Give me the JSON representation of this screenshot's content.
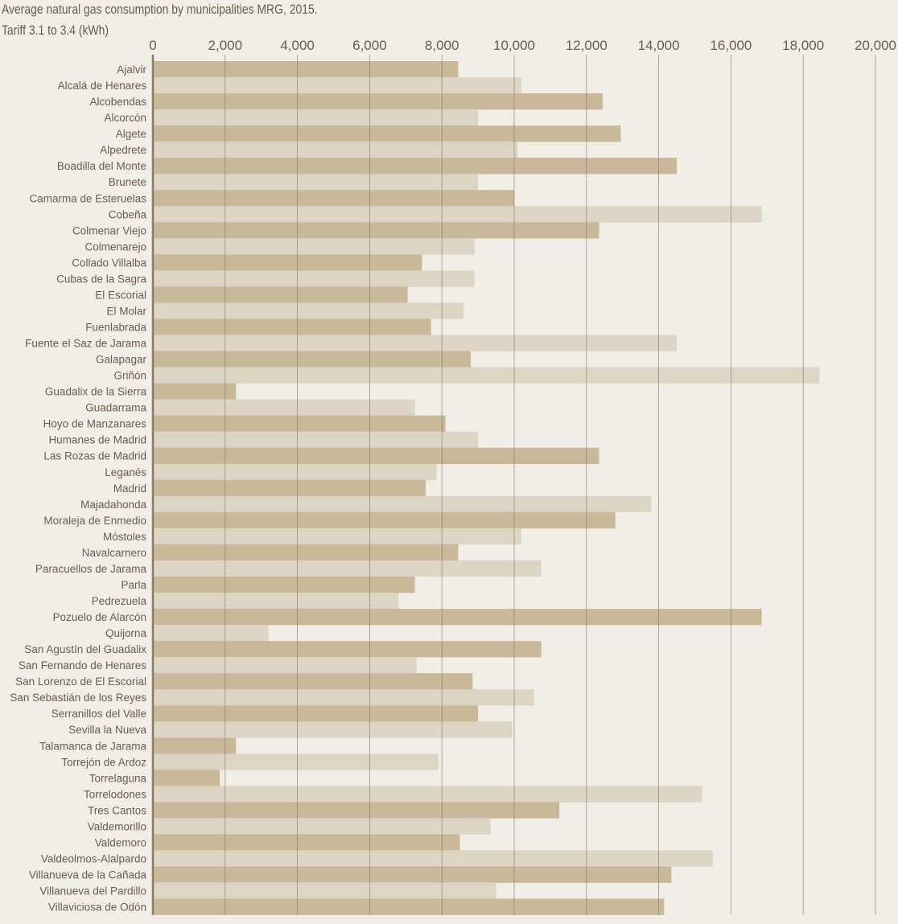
{
  "chart_data": {
    "type": "bar",
    "orientation": "horizontal",
    "title": "Average natural gas consumption by municipalities MRG, 2015.",
    "subtitle": "Tariff 3.1 to 3.4 (kWh)",
    "xlim": [
      0,
      20000
    ],
    "xticks": [
      0,
      2000,
      4000,
      6000,
      8000,
      10000,
      12000,
      14000,
      16000,
      18000,
      20000
    ],
    "xtick_labels": [
      "0",
      "2,000",
      "4,000",
      "6,000",
      "8,000",
      "10,000",
      "12,000",
      "14,000",
      "16,000",
      "18,000",
      "20,000"
    ],
    "grid": true,
    "colors": {
      "background": "#f0eee7",
      "bar_dark": "#c9b99a",
      "bar_light": "#ddd5c3",
      "grid": "#8a7b69",
      "text": "#6b5c4c"
    },
    "categories": [
      "Ajalvir",
      "Alcalá de Henares",
      "Alcobendas",
      "Alcorcón",
      "Algete",
      "Alpedrete",
      "Boadilla del Monte",
      "Brunete",
      "Camarma de Esteruelas",
      "Cobeña",
      "Colmenar Viejo",
      "Colmenarejo",
      "Collado Villalba",
      "Cubas de la Sagra",
      "El Escorial",
      "El Molar",
      "Fuenlabrada",
      "Fuente el Saz de Jarama",
      "Galapagar",
      "Griñón",
      "Guadalix de la Sierra",
      "Guadarrama",
      "Hoyo de Manzanares",
      "Humanes de Madrid",
      "Las Rozas de Madrid",
      "Leganés",
      "Madrid",
      "Majadahonda",
      "Moraleja de Enmedio",
      "Móstoles",
      "Navalcarnero",
      "Paracuellos de Jarama",
      "Parla",
      "Pedrezuela",
      "Pozuelo de Alarcón",
      "Quijorna",
      "San Agustín del Guadalix",
      "San Fernando de Henares",
      "San Lorenzo de El Escorial",
      "San Sebastián de los Reyes",
      "Serranillos del Valle",
      "Sevilla la Nueva",
      "Talamanca de Jarama",
      "Torrejón de Ardoz",
      "Torrelaguna",
      "Torrelodones",
      "Tres Cantos",
      "Valdemorillo",
      "Valdemoro",
      "Valdeolmos-Alalpardo",
      "Villanueva de la Cañada",
      "Villanueva del Pardillo",
      "Villaviciosa de Odón"
    ],
    "values": [
      8450,
      10200,
      12450,
      9000,
      12950,
      10100,
      14500,
      9000,
      10000,
      16850,
      12350,
      8900,
      7450,
      8900,
      7050,
      8600,
      7700,
      14500,
      8800,
      18450,
      2300,
      7250,
      8100,
      9000,
      12350,
      7850,
      7550,
      13800,
      12800,
      10200,
      8450,
      10750,
      7250,
      6800,
      16850,
      3200,
      10750,
      7300,
      8850,
      10550,
      9000,
      9950,
      2300,
      7900,
      1850,
      15200,
      11250,
      9350,
      8500,
      15500,
      14350,
      9500,
      14150
    ]
  }
}
